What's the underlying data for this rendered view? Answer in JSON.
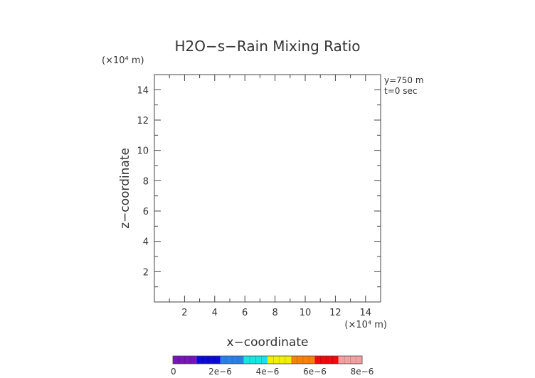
{
  "chart_data": {
    "type": "heatmap",
    "title": "H2O−s−Rain Mixing Ratio",
    "xlabel": "x−coordinate",
    "ylabel": "z−coordinate",
    "x_unit": "(×10⁴ m)",
    "y_unit": "(×10⁴ m)",
    "xlim": [
      0,
      15
    ],
    "ylim": [
      0,
      15
    ],
    "x_ticks": [
      2,
      4,
      6,
      8,
      10,
      12,
      14
    ],
    "y_ticks": [
      2,
      4,
      6,
      8,
      10,
      12,
      14
    ],
    "x_tick_labels": [
      "2",
      "4",
      "6",
      "8",
      "10",
      "12",
      "14"
    ],
    "y_tick_labels": [
      "2",
      "4",
      "6",
      "8",
      "10",
      "12",
      "14"
    ],
    "annotations": [
      "y=750  m",
      "t=0  sec"
    ],
    "values": [],
    "colorbar": {
      "colors": [
        "#7a14b4",
        "#0a0ad2",
        "#2882e6",
        "#14e6e6",
        "#f0f000",
        "#f5820f",
        "#f00a0a",
        "#f5a0a0"
      ],
      "tick_values": [
        0,
        2e-06,
        4e-06,
        6e-06,
        8e-06
      ],
      "tick_labels": [
        "0",
        "2e−6",
        "4e−6",
        "6e−6",
        "8e−6"
      ],
      "range": [
        0,
        8e-06
      ]
    }
  }
}
